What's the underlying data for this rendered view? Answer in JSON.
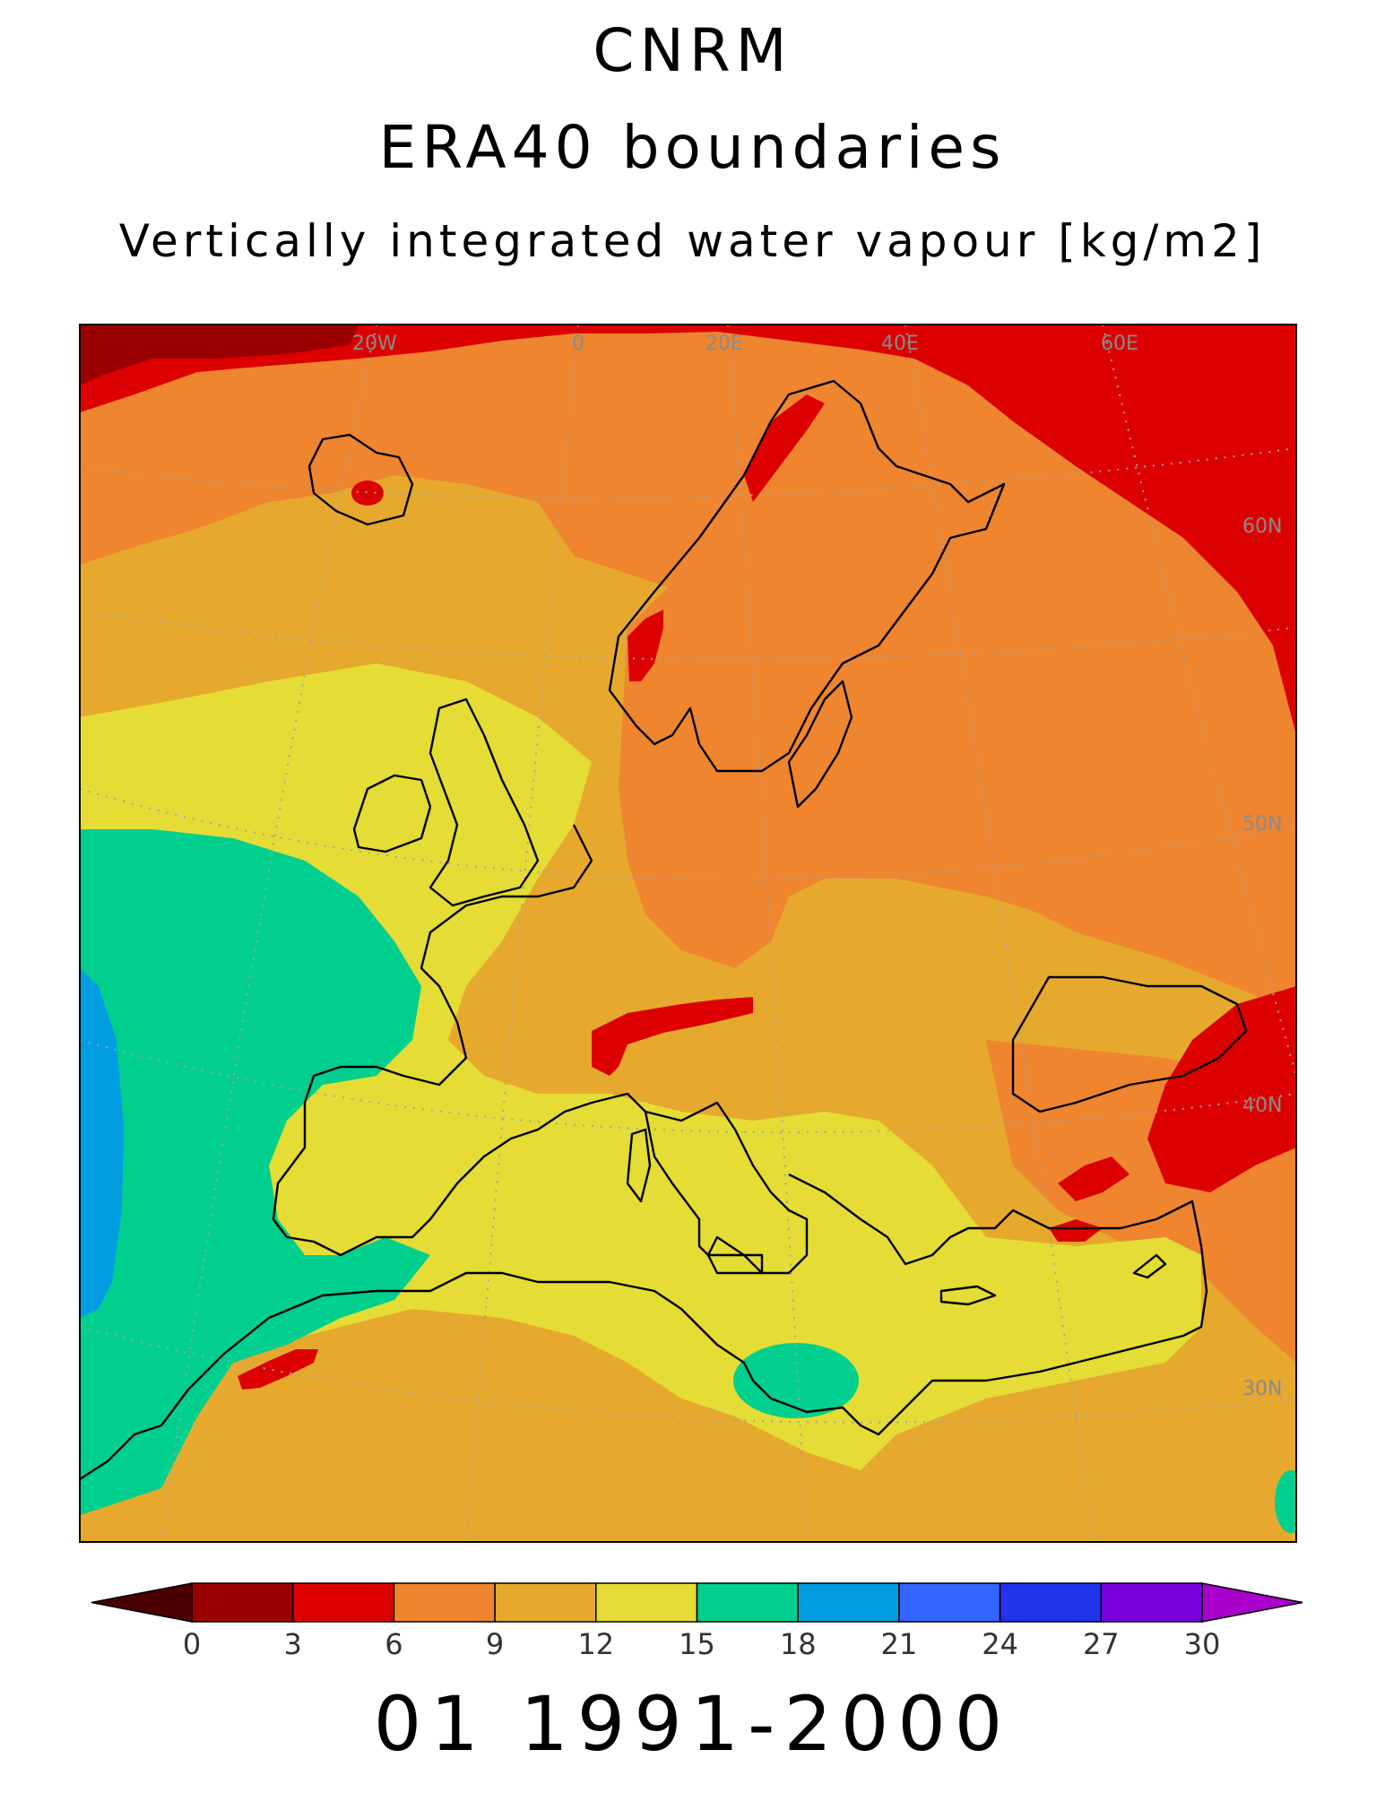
{
  "titles": {
    "model": "CNRM",
    "forcing": "ERA40 boundaries",
    "variable": "Vertically integrated water vapour [kg/m2]"
  },
  "period": "01 1991-2000",
  "map": {
    "graticule_labels": {
      "lon": [
        "20W",
        "0",
        "20E",
        "40E",
        "60E"
      ],
      "lat": [
        "60N",
        "50N",
        "40N",
        "30N"
      ]
    },
    "colors": {
      "under": "#4a0000",
      "c0_3": "#9b0000",
      "c3_6": "#dd0000",
      "c6_9": "#ef852f",
      "c9_12": "#e6a92e",
      "c12_15": "#e5dc35",
      "c15_18": "#00cf8d",
      "c18_21": "#009ee0",
      "c21_24": "#3366ff",
      "c24_27": "#2233ee",
      "c27_30": "#7700dd",
      "over": "#aa00cc"
    }
  },
  "colorbar": {
    "ticks": [
      "0",
      "3",
      "6",
      "9",
      "12",
      "15",
      "18",
      "21",
      "24",
      "27",
      "30"
    ],
    "colors": [
      "#9b0000",
      "#dd0000",
      "#ef852f",
      "#e6a92e",
      "#e5dc35",
      "#00cf8d",
      "#009ee0",
      "#3366ff",
      "#2233ee",
      "#7700dd"
    ],
    "under_color": "#4a0000",
    "over_color": "#aa00cc"
  }
}
